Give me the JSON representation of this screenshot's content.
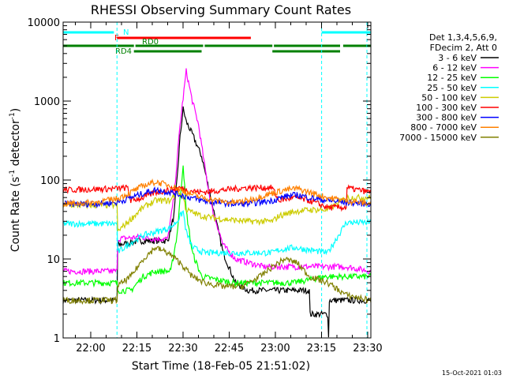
{
  "chart_data": {
    "type": "line",
    "title": "RHESSI Observing Summary Count Rates",
    "xlabel": "Start Time (18-Feb-05 21:51:02)",
    "ylabel_main": "Count Rate (s",
    "ylabel_sup1": "-1",
    "ylabel_mid": " detector",
    "ylabel_sup2": "-1",
    "ylabel_end": ")",
    "x_unit": "minutes since 21:51:02",
    "xlim": [
      0,
      100
    ],
    "ylim": [
      1,
      10000
    ],
    "yscale": "log",
    "x_ticks": [
      {
        "label": "22:00",
        "x": 8.97
      },
      {
        "label": "22:15",
        "x": 23.97
      },
      {
        "label": "22:30",
        "x": 38.97
      },
      {
        "label": "22:45",
        "x": 53.97
      },
      {
        "label": "23:00",
        "x": 68.97
      },
      {
        "label": "23:15",
        "x": 83.97
      },
      {
        "label": "23:30",
        "x": 98.97
      }
    ],
    "y_ticks": [
      {
        "label": "1",
        "y": 1
      },
      {
        "label": "10",
        "y": 10
      },
      {
        "label": "100",
        "y": 100
      },
      {
        "label": "1000",
        "y": 1000
      },
      {
        "label": "10000",
        "y": 10000
      }
    ],
    "legend": {
      "header1": "Det 1,3,4,5,6,9,",
      "header2": "FDecim 2, Att 0",
      "placement": "right"
    },
    "series": [
      {
        "name": "3 - 6 keV",
        "color": "#000000",
        "points": [
          [
            0,
            3
          ],
          [
            17.5,
            3
          ],
          [
            17.5,
            15
          ],
          [
            25,
            17
          ],
          [
            30,
            17
          ],
          [
            34,
            17
          ],
          [
            36,
            35
          ],
          [
            37,
            100
          ],
          [
            38,
            350
          ],
          [
            39,
            800
          ],
          [
            40,
            550
          ],
          [
            42,
            380
          ],
          [
            45,
            200
          ],
          [
            48,
            60
          ],
          [
            52,
            12
          ],
          [
            56,
            5
          ],
          [
            60,
            4
          ],
          [
            70,
            4
          ],
          [
            80,
            4
          ],
          [
            80,
            2
          ],
          [
            86,
            2
          ],
          [
            86,
            1
          ],
          [
            86.3,
            1
          ],
          [
            86.3,
            3
          ],
          [
            100,
            3
          ]
        ]
      },
      {
        "name": "6 - 12 keV",
        "color": "#ff00ff",
        "points": [
          [
            0,
            7
          ],
          [
            17.5,
            7
          ],
          [
            17.5,
            18
          ],
          [
            25,
            19
          ],
          [
            30,
            18
          ],
          [
            34,
            18
          ],
          [
            36,
            60
          ],
          [
            38,
            500
          ],
          [
            40,
            2400
          ],
          [
            42,
            1000
          ],
          [
            44,
            500
          ],
          [
            46,
            150
          ],
          [
            48,
            50
          ],
          [
            52,
            15
          ],
          [
            56,
            10
          ],
          [
            65,
            8
          ],
          [
            75,
            8
          ],
          [
            85,
            8
          ],
          [
            92,
            8
          ],
          [
            100,
            7
          ]
        ]
      },
      {
        "name": "12 - 25 keV",
        "color": "#00ff00",
        "points": [
          [
            0,
            5
          ],
          [
            17.5,
            5
          ],
          [
            17.5,
            4
          ],
          [
            22,
            4
          ],
          [
            26,
            6
          ],
          [
            30,
            7
          ],
          [
            35,
            7
          ],
          [
            37,
            20
          ],
          [
            39,
            160
          ],
          [
            40,
            40
          ],
          [
            42,
            12
          ],
          [
            45,
            6
          ],
          [
            55,
            5
          ],
          [
            68,
            5
          ],
          [
            75,
            5
          ],
          [
            85,
            6
          ],
          [
            92,
            6
          ],
          [
            100,
            6
          ]
        ]
      },
      {
        "name": "25 - 50 keV",
        "color": "#00ffff",
        "points": [
          [
            0,
            28
          ],
          [
            17.5,
            28
          ],
          [
            17.5,
            12
          ],
          [
            22,
            16
          ],
          [
            26,
            20
          ],
          [
            30,
            22
          ],
          [
            35,
            25
          ],
          [
            37,
            30
          ],
          [
            39,
            40
          ],
          [
            40,
            22
          ],
          [
            42,
            14
          ],
          [
            46,
            12
          ],
          [
            52,
            12
          ],
          [
            60,
            12
          ],
          [
            68,
            12
          ],
          [
            70,
            13
          ],
          [
            75,
            14
          ],
          [
            80,
            13
          ],
          [
            86,
            12
          ],
          [
            92,
            29
          ],
          [
            100,
            29
          ]
        ]
      },
      {
        "name": "50 - 100 keV",
        "color": "#cccc00",
        "points": [
          [
            0,
            48
          ],
          [
            17.5,
            48
          ],
          [
            17.5,
            22
          ],
          [
            22,
            32
          ],
          [
            26,
            45
          ],
          [
            30,
            55
          ],
          [
            35,
            55
          ],
          [
            37,
            75
          ],
          [
            39,
            60
          ],
          [
            40,
            42
          ],
          [
            45,
            35
          ],
          [
            52,
            32
          ],
          [
            60,
            30
          ],
          [
            68,
            30
          ],
          [
            70,
            35
          ],
          [
            75,
            40
          ],
          [
            80,
            42
          ],
          [
            86,
            42
          ],
          [
            92,
            60
          ],
          [
            100,
            60
          ]
        ]
      },
      {
        "name": "100 - 300 keV",
        "color": "#ff0000",
        "points": [
          [
            0,
            75
          ],
          [
            17.5,
            78
          ],
          [
            21,
            80
          ],
          [
            22,
            55
          ],
          [
            26,
            60
          ],
          [
            30,
            70
          ],
          [
            35,
            75
          ],
          [
            38,
            80
          ],
          [
            40,
            75
          ],
          [
            45,
            70
          ],
          [
            52,
            75
          ],
          [
            60,
            80
          ],
          [
            68,
            80
          ],
          [
            70,
            55
          ],
          [
            75,
            60
          ],
          [
            80,
            55
          ],
          [
            86,
            45
          ],
          [
            92,
            45
          ],
          [
            92,
            80
          ],
          [
            100,
            70
          ]
        ]
      },
      {
        "name": "300 - 800 keV",
        "color": "#0000ff",
        "points": [
          [
            0,
            50
          ],
          [
            10,
            50
          ],
          [
            17.5,
            52
          ],
          [
            22,
            60
          ],
          [
            26,
            68
          ],
          [
            30,
            75
          ],
          [
            35,
            70
          ],
          [
            40,
            62
          ],
          [
            45,
            55
          ],
          [
            50,
            52
          ],
          [
            55,
            50
          ],
          [
            60,
            50
          ],
          [
            68,
            55
          ],
          [
            72,
            62
          ],
          [
            76,
            65
          ],
          [
            80,
            60
          ],
          [
            86,
            55
          ],
          [
            92,
            52
          ],
          [
            100,
            50
          ]
        ]
      },
      {
        "name": "800 - 7000 keV",
        "color": "#ff8000",
        "points": [
          [
            0,
            50
          ],
          [
            10,
            52
          ],
          [
            17.5,
            58
          ],
          [
            22,
            70
          ],
          [
            26,
            85
          ],
          [
            30,
            95
          ],
          [
            35,
            85
          ],
          [
            40,
            70
          ],
          [
            45,
            60
          ],
          [
            50,
            55
          ],
          [
            55,
            52
          ],
          [
            60,
            55
          ],
          [
            66,
            65
          ],
          [
            72,
            75
          ],
          [
            76,
            78
          ],
          [
            80,
            70
          ],
          [
            86,
            60
          ],
          [
            92,
            55
          ],
          [
            100,
            50
          ]
        ]
      },
      {
        "name": "7000 - 15000 keV",
        "color": "#808000",
        "points": [
          [
            0,
            3
          ],
          [
            17.5,
            3
          ],
          [
            17.5,
            4.5
          ],
          [
            22,
            6
          ],
          [
            26,
            10
          ],
          [
            30,
            14
          ],
          [
            34,
            12
          ],
          [
            38,
            9
          ],
          [
            42,
            6
          ],
          [
            46,
            5
          ],
          [
            52,
            4.5
          ],
          [
            58,
            4.5
          ],
          [
            64,
            6
          ],
          [
            68,
            8
          ],
          [
            72,
            10
          ],
          [
            76,
            9
          ],
          [
            80,
            6
          ],
          [
            86,
            5
          ],
          [
            92,
            3.5
          ],
          [
            100,
            3
          ]
        ]
      }
    ],
    "status_bars": [
      {
        "label": "N",
        "color": "#00ffff",
        "segments": [
          [
            0,
            16.5
          ],
          [
            84,
            100
          ]
        ]
      },
      {
        "label": "F",
        "color": "#ff0000",
        "segments": [
          [
            17.5,
            61
          ]
        ]
      },
      {
        "label": "RD0",
        "color": "#008000",
        "segments": [
          [
            0,
            23
          ],
          [
            23.5,
            45.5
          ],
          [
            46,
            68
          ],
          [
            68.5,
            90
          ],
          [
            91,
            100
          ]
        ]
      },
      {
        "label": "RD4",
        "color": "#008000",
        "segments": [
          [
            23,
            45
          ],
          [
            68,
            90
          ]
        ]
      }
    ],
    "night_boundaries": [
      17.5,
      84
    ],
    "grid": false
  },
  "footer_date": "15-Oct-2021 01:03"
}
